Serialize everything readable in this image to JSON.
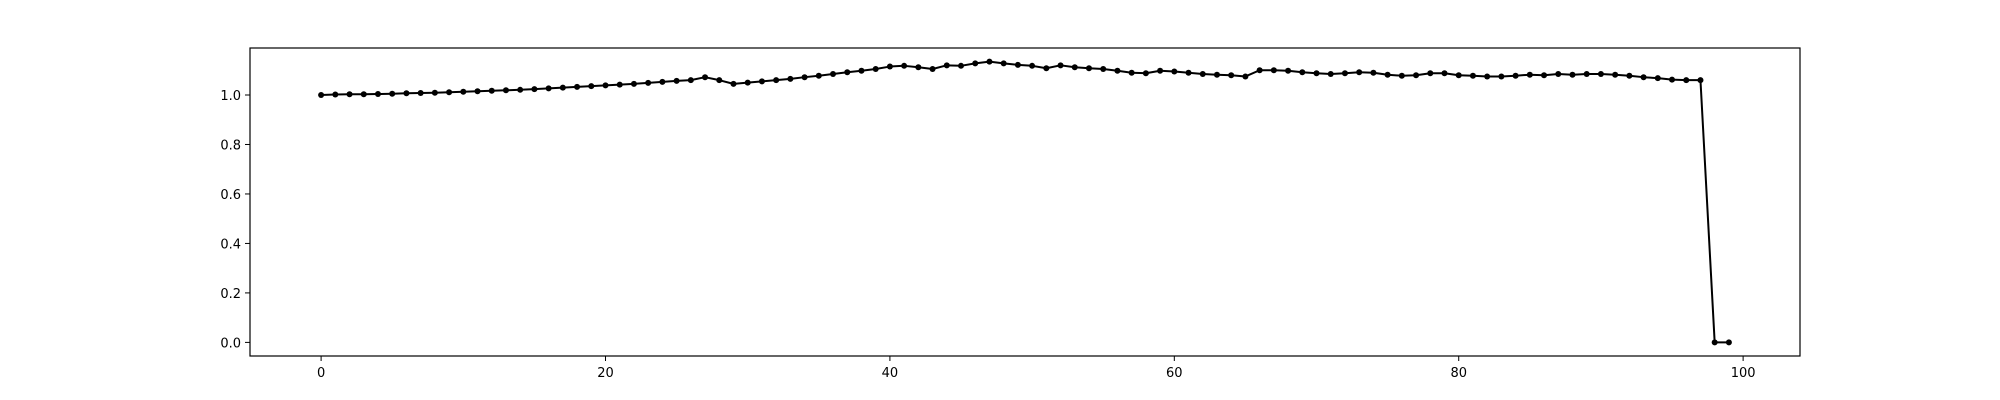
{
  "chart_data": {
    "type": "line",
    "title": "",
    "xlabel": "",
    "ylabel": "",
    "xlim": [
      -5,
      104
    ],
    "ylim": [
      -0.055,
      1.19
    ],
    "xticks": [
      0,
      20,
      40,
      60,
      80,
      100
    ],
    "yticks": [
      0.0,
      0.2,
      0.4,
      0.6,
      0.8,
      1.0
    ],
    "xtick_labels": [
      "0",
      "20",
      "40",
      "60",
      "80",
      "100"
    ],
    "ytick_labels": [
      "0.0",
      "0.2",
      "0.4",
      "0.6",
      "0.8",
      "1.0"
    ],
    "grid": false,
    "line_color": "#000000",
    "marker": "dot",
    "series": [
      {
        "x": [
          0,
          1,
          2,
          3,
          4,
          5,
          6,
          7,
          8,
          9,
          10,
          11,
          12,
          13,
          14,
          15,
          16,
          17,
          18,
          19,
          20,
          21,
          22,
          23,
          24,
          25,
          26,
          27,
          28,
          29,
          30,
          31,
          32,
          33,
          34,
          35,
          36,
          37,
          38,
          39,
          40,
          41,
          42,
          43,
          44,
          45,
          46,
          47,
          48,
          49,
          50,
          51,
          52,
          53,
          54,
          55,
          56,
          57,
          58,
          59,
          60,
          61,
          62,
          63,
          64,
          65,
          66,
          67,
          68,
          69,
          70,
          71,
          72,
          73,
          74,
          75,
          76,
          77,
          78,
          79,
          80,
          81,
          82,
          83,
          84,
          85,
          86,
          87,
          88,
          89,
          90,
          91,
          92,
          93,
          94,
          95,
          96,
          97,
          98,
          99
        ],
        "values": [
          1.0,
          1.002,
          1.003,
          1.003,
          1.004,
          1.005,
          1.007,
          1.008,
          1.009,
          1.011,
          1.013,
          1.015,
          1.017,
          1.019,
          1.021,
          1.024,
          1.027,
          1.03,
          1.033,
          1.036,
          1.039,
          1.042,
          1.045,
          1.049,
          1.053,
          1.057,
          1.06,
          1.072,
          1.06,
          1.045,
          1.05,
          1.055,
          1.06,
          1.065,
          1.072,
          1.078,
          1.085,
          1.092,
          1.098,
          1.105,
          1.115,
          1.118,
          1.112,
          1.105,
          1.12,
          1.118,
          1.128,
          1.135,
          1.128,
          1.122,
          1.118,
          1.108,
          1.12,
          1.112,
          1.108,
          1.105,
          1.098,
          1.09,
          1.088,
          1.098,
          1.095,
          1.09,
          1.085,
          1.082,
          1.08,
          1.075,
          1.1,
          1.1,
          1.098,
          1.092,
          1.088,
          1.085,
          1.088,
          1.092,
          1.09,
          1.082,
          1.078,
          1.08,
          1.088,
          1.088,
          1.08,
          1.078,
          1.075,
          1.075,
          1.078,
          1.082,
          1.08,
          1.085,
          1.082,
          1.085,
          1.085,
          1.082,
          1.078,
          1.072,
          1.068,
          1.062,
          1.06,
          1.06,
          0.0,
          0.0
        ]
      }
    ]
  }
}
